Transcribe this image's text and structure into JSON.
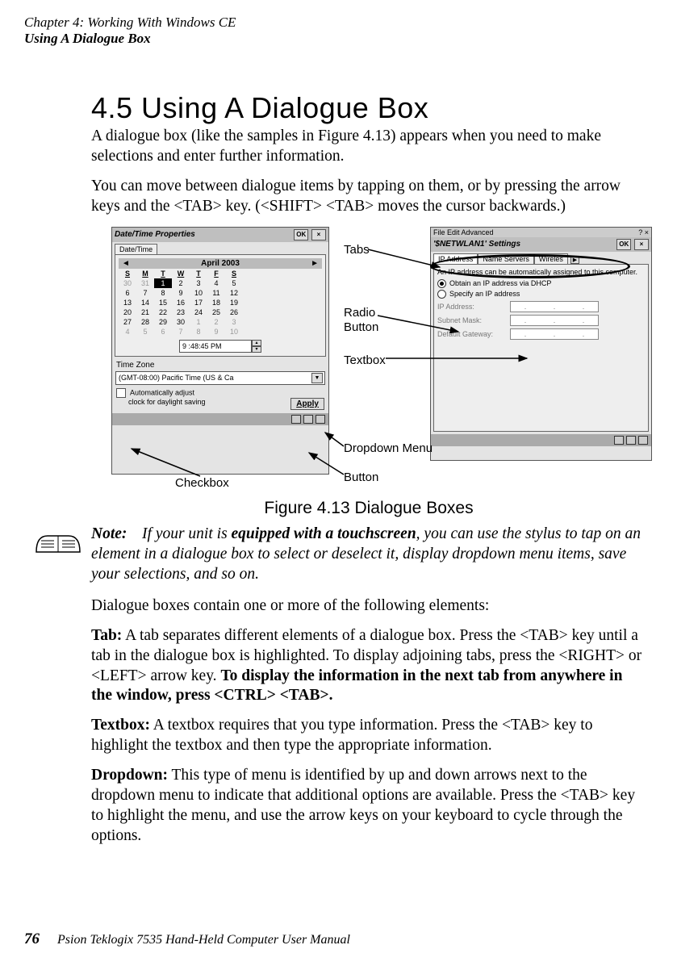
{
  "header": {
    "chapter": "Chapter 4: Working With Windows CE",
    "section": "Using A Dialogue Box"
  },
  "title": "4.5  Using A Dialogue Box",
  "para1": "A dialogue box (like the samples in Figure 4.13) appears when you need to make selections and enter further information.",
  "para2": "You can move between dialogue items by tapping on them, or by pressing the arrow keys and the <TAB> key. (<SHIFT> <TAB> moves the cursor backwards.)",
  "annotations": {
    "tabs": "Tabs",
    "radio": "Radio",
    "button_lbl": "Button",
    "textbox": "Textbox",
    "dropdown": "Dropdown Menu",
    "button": "Button",
    "checkbox": "Checkbox"
  },
  "ss1": {
    "title": "Date/Time Properties",
    "ok": "OK",
    "tab": "Date/Time",
    "month": "April 2003",
    "days": [
      "S",
      "M",
      "T",
      "W",
      "T",
      "F",
      "S"
    ],
    "rows": [
      [
        "30",
        "31",
        "1",
        "2",
        "3",
        "4",
        "5"
      ],
      [
        "6",
        "7",
        "8",
        "9",
        "10",
        "11",
        "12"
      ],
      [
        "13",
        "14",
        "15",
        "16",
        "17",
        "18",
        "19"
      ],
      [
        "20",
        "21",
        "22",
        "23",
        "24",
        "25",
        "26"
      ],
      [
        "27",
        "28",
        "29",
        "30",
        "1",
        "2",
        "3"
      ],
      [
        "4",
        "5",
        "6",
        "7",
        "8",
        "9",
        "10"
      ]
    ],
    "selected_cell": "1",
    "time": "9 :48:45 PM",
    "tz_label": "Time Zone",
    "tz_value": "(GMT-08:00) Pacific Time (US & Ca",
    "chk_text1": "Automatically adjust",
    "chk_text2": "clock for daylight saving",
    "apply": "Apply"
  },
  "ss2": {
    "menu": "File   Edit   Advanced",
    "title": "'$NETWLAN1' Settings",
    "ok": "OK",
    "tabs": [
      "IP Address",
      "Name Servers",
      "Wireles"
    ],
    "desc": "An IP address can be automatically assigned to this computer.",
    "opt1": "Obtain an IP address via DHCP",
    "opt2": "Specify an IP address",
    "ip_lbl": "IP Address:",
    "sm_lbl": "Subnet Mask:",
    "gw_lbl": "Default Gateway:"
  },
  "figure_caption": "Figure 4.13 Dialogue Boxes",
  "note": {
    "label": "Note:",
    "before_strong": "If your unit is ",
    "strong": "equipped with a touchscreen",
    "after_strong": ", you can use the stylus to tap on an element in a dialogue box to select or deselect it, display dropdown menu items, save your selections, and so on."
  },
  "para3": "Dialogue boxes contain one or more of the following elements:",
  "tab_def_label": "Tab:",
  "tab_def_text": " A tab separates different elements of a dialogue box. Press the <TAB> key until a tab in the dialogue box is highlighted. To display adjoining tabs, press the <RIGHT> or <LEFT> arrow key. ",
  "tab_def_strong": "To display the information in the next tab from anywhere in the window, press <CTRL> <TAB>.",
  "textbox_def_label": "Textbox:",
  "textbox_def_text": " A textbox requires that you type information. Press the <TAB> key to highlight the textbox and then type the appropriate information.",
  "dropdown_def_label": "Dropdown:",
  "dropdown_def_text": " This type of menu is identified by up and down arrows next to the dropdown menu to indicate that additional options are available. Press the <TAB> key to highlight the menu, and use the arrow keys on your keyboard to cycle through the options.",
  "footer": {
    "page": "76",
    "title": "Psion Teklogix 7535 Hand-Held Computer User Manual"
  }
}
